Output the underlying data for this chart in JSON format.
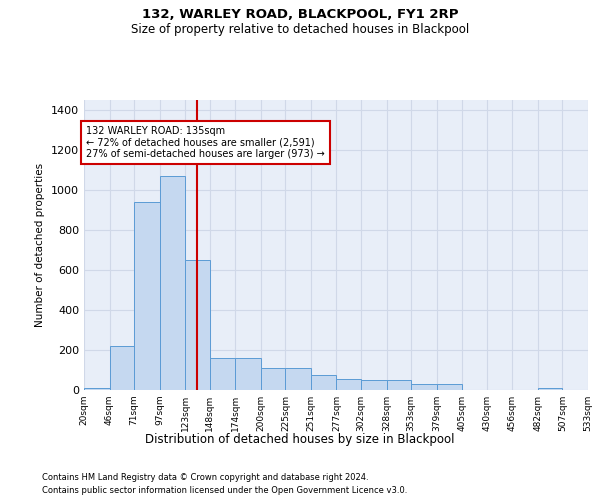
{
  "title1": "132, WARLEY ROAD, BLACKPOOL, FY1 2RP",
  "title2": "Size of property relative to detached houses in Blackpool",
  "xlabel": "Distribution of detached houses by size in Blackpool",
  "ylabel": "Number of detached properties",
  "bin_edges": [
    20,
    46,
    71,
    97,
    123,
    148,
    174,
    200,
    225,
    251,
    277,
    302,
    328,
    353,
    379,
    405,
    430,
    456,
    482,
    507,
    533
  ],
  "bar_heights": [
    10,
    220,
    940,
    1070,
    650,
    160,
    160,
    110,
    110,
    75,
    55,
    50,
    50,
    30,
    30,
    0,
    0,
    0,
    10,
    0
  ],
  "bar_color": "#c5d8f0",
  "bar_edge_color": "#5b9bd5",
  "grid_color": "#d0d8e8",
  "background_color": "#e8eef8",
  "property_line_x": 135,
  "property_line_color": "#cc0000",
  "annotation_title": "132 WARLEY ROAD: 135sqm",
  "annotation_line1": "← 72% of detached houses are smaller (2,591)",
  "annotation_line2": "27% of semi-detached houses are larger (973) →",
  "annotation_box_color": "#ffffff",
  "annotation_box_edge": "#cc0000",
  "ylim": [
    0,
    1450
  ],
  "yticks": [
    0,
    200,
    400,
    600,
    800,
    1000,
    1200,
    1400
  ],
  "footnote1": "Contains HM Land Registry data © Crown copyright and database right 2024.",
  "footnote2": "Contains public sector information licensed under the Open Government Licence v3.0."
}
